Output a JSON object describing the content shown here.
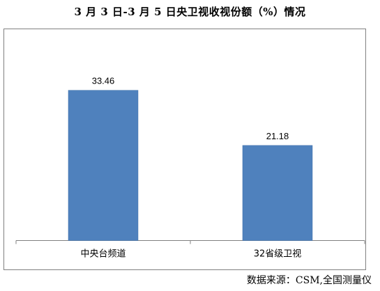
{
  "title": "3 月 3 日-3 月 5 日央卫视收视份额（%）情况",
  "source_note": "数据来源：CSM,全国测量仪",
  "colors": {
    "bar": "#4f81bd",
    "bar_edge": "#3f6fa8",
    "border": "#808080",
    "axis": "#808080"
  },
  "chart_data": {
    "type": "bar",
    "title": "3 月 3 日-3 月 5 日央卫视收视份额（%）情况",
    "categories": [
      "中央台频道",
      "32省级卫视"
    ],
    "values": [
      33.46,
      21.18
    ],
    "data_labels": [
      "33.46",
      "21.18"
    ],
    "xlabel": "",
    "ylabel": "",
    "ylim": [
      0,
      40
    ],
    "grid": false,
    "legend": "none"
  }
}
